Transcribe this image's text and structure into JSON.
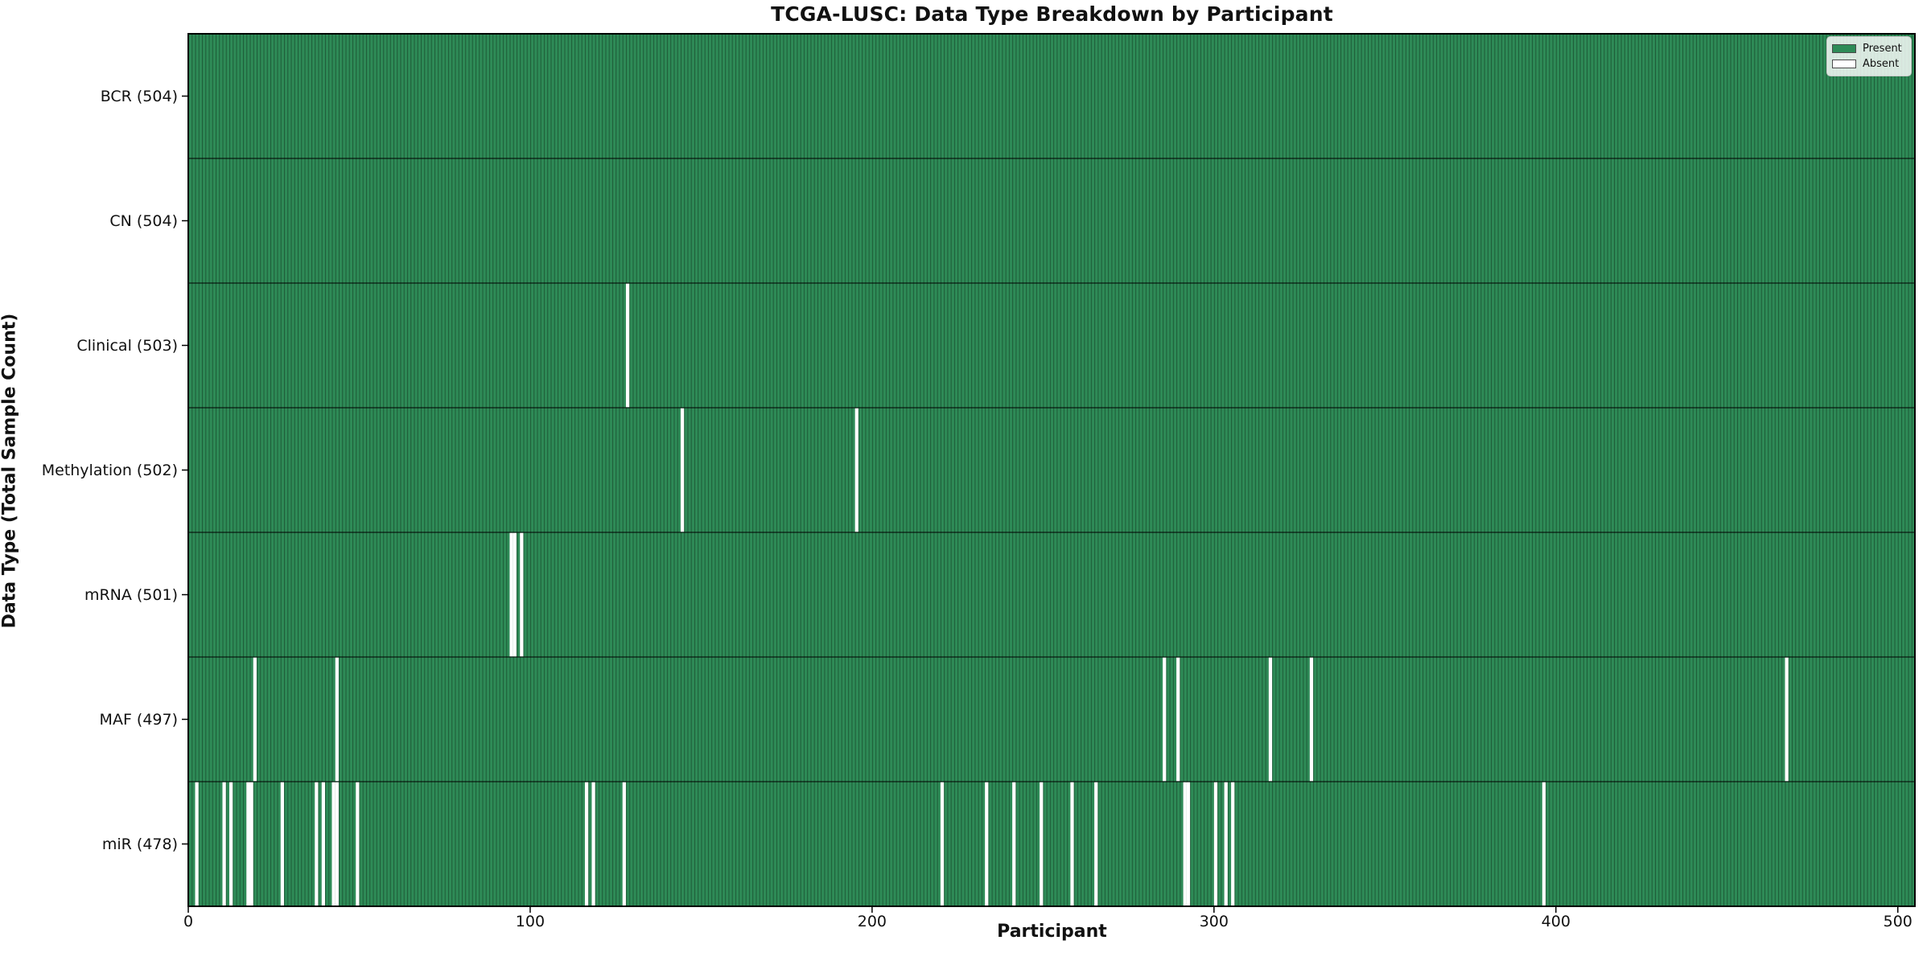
{
  "title": "TCGA-LUSC: Data Type Breakdown by Participant",
  "legend": {
    "present_label": "Present",
    "absent_label": "Absent"
  },
  "chart_data": {
    "type": "heatmap",
    "title": "TCGA-LUSC: Data Type Breakdown by Participant",
    "xlabel": "Participant",
    "ylabel": "Data Type (Total Sample Count)",
    "x_ticks": [
      0,
      100,
      200,
      300,
      400,
      500
    ],
    "xlim": [
      0,
      505
    ],
    "n_participants": 504,
    "grid": false,
    "legend_position": "upper right",
    "legend_entries": [
      {
        "label": "Present",
        "color": "#2e8b57"
      },
      {
        "label": "Absent",
        "color": "#ffffff"
      }
    ],
    "colors": {
      "present": "#2e8b57",
      "absent": "#ffffff",
      "bar_edge": "#10351f",
      "axis": "#000000",
      "background": "#ffffff"
    },
    "rows": [
      {
        "name": "BCR",
        "label": "BCR (504)",
        "total": 504,
        "absent_participants": []
      },
      {
        "name": "CN",
        "label": "CN (504)",
        "total": 504,
        "absent_participants": []
      },
      {
        "name": "Clinical",
        "label": "Clinical (503)",
        "total": 503,
        "absent_participants": [
          129
        ]
      },
      {
        "name": "Methylation",
        "label": "Methylation (502)",
        "total": 502,
        "absent_participants": [
          145,
          196
        ]
      },
      {
        "name": "mRNA",
        "label": "mRNA (501)",
        "total": 501,
        "absent_participants": [
          95,
          96,
          98
        ]
      },
      {
        "name": "MAF",
        "label": "MAF (497)",
        "total": 497,
        "absent_participants": [
          20,
          44,
          286,
          290,
          317,
          329,
          468
        ]
      },
      {
        "name": "miR",
        "label": "miR (478)",
        "total": 478,
        "absent_participants": [
          3,
          11,
          13,
          18,
          19,
          28,
          38,
          40,
          43,
          44,
          50,
          117,
          119,
          128,
          221,
          234,
          242,
          250,
          259,
          266,
          292,
          293,
          301,
          304,
          306,
          397
        ]
      }
    ]
  }
}
